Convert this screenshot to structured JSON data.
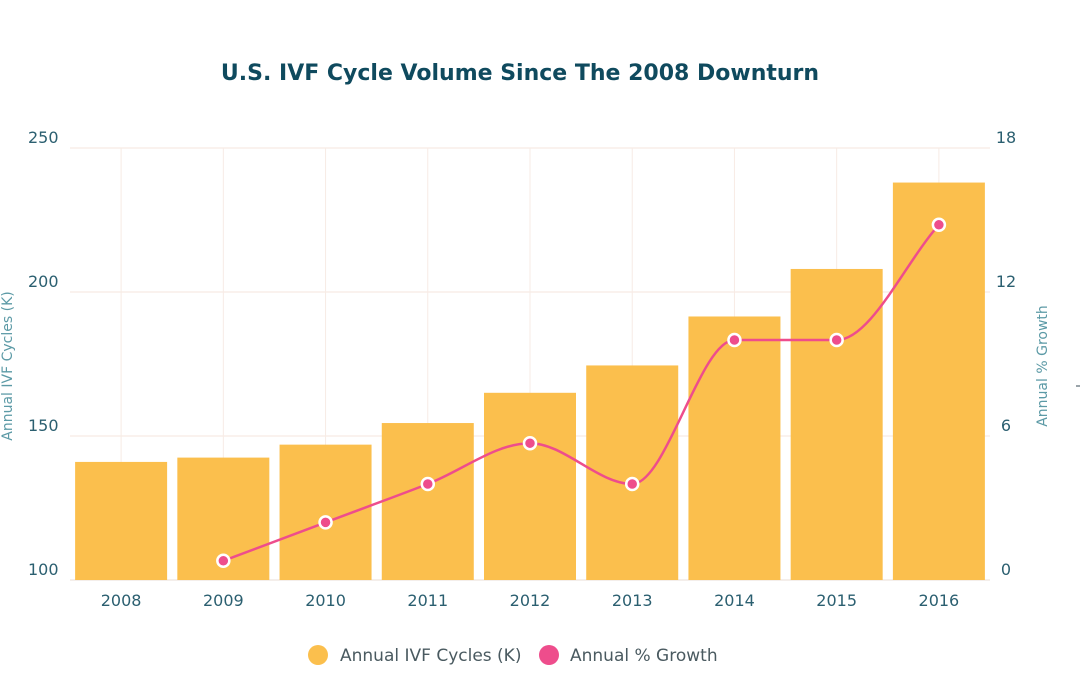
{
  "chart_data": {
    "type": "bar",
    "title": "U.S. IVF Cycle Volume Since The 2008 Downturn",
    "categories": [
      "2008",
      "2009",
      "2010",
      "2011",
      "2012",
      "2013",
      "2014",
      "2015",
      "2016"
    ],
    "series": [
      {
        "name": "Annual IVF Cycles (K)",
        "type": "bar",
        "axis": "left",
        "values": [
          141,
          142.5,
          147,
          154.5,
          165,
          174.5,
          191.5,
          208,
          238
        ],
        "color": "#fbbf4d"
      },
      {
        "name": "Annual % Growth",
        "type": "line",
        "axis": "right",
        "values": [
          null,
          0.8,
          2.4,
          4,
          5.7,
          4,
          10,
          10,
          14.8
        ],
        "color": "#ee4d8c"
      }
    ],
    "left_axis": {
      "label": "Annual IVF Cycles (K)",
      "ylim": [
        100,
        250
      ],
      "ticks": [
        "100",
        "150",
        "200",
        "250"
      ]
    },
    "right_axis": {
      "label": "Annual % Growth",
      "ylim": [
        0,
        18
      ],
      "ticks": [
        "0",
        "6",
        "12",
        "18"
      ]
    },
    "grid": true,
    "legend_position": "bottom-center"
  }
}
